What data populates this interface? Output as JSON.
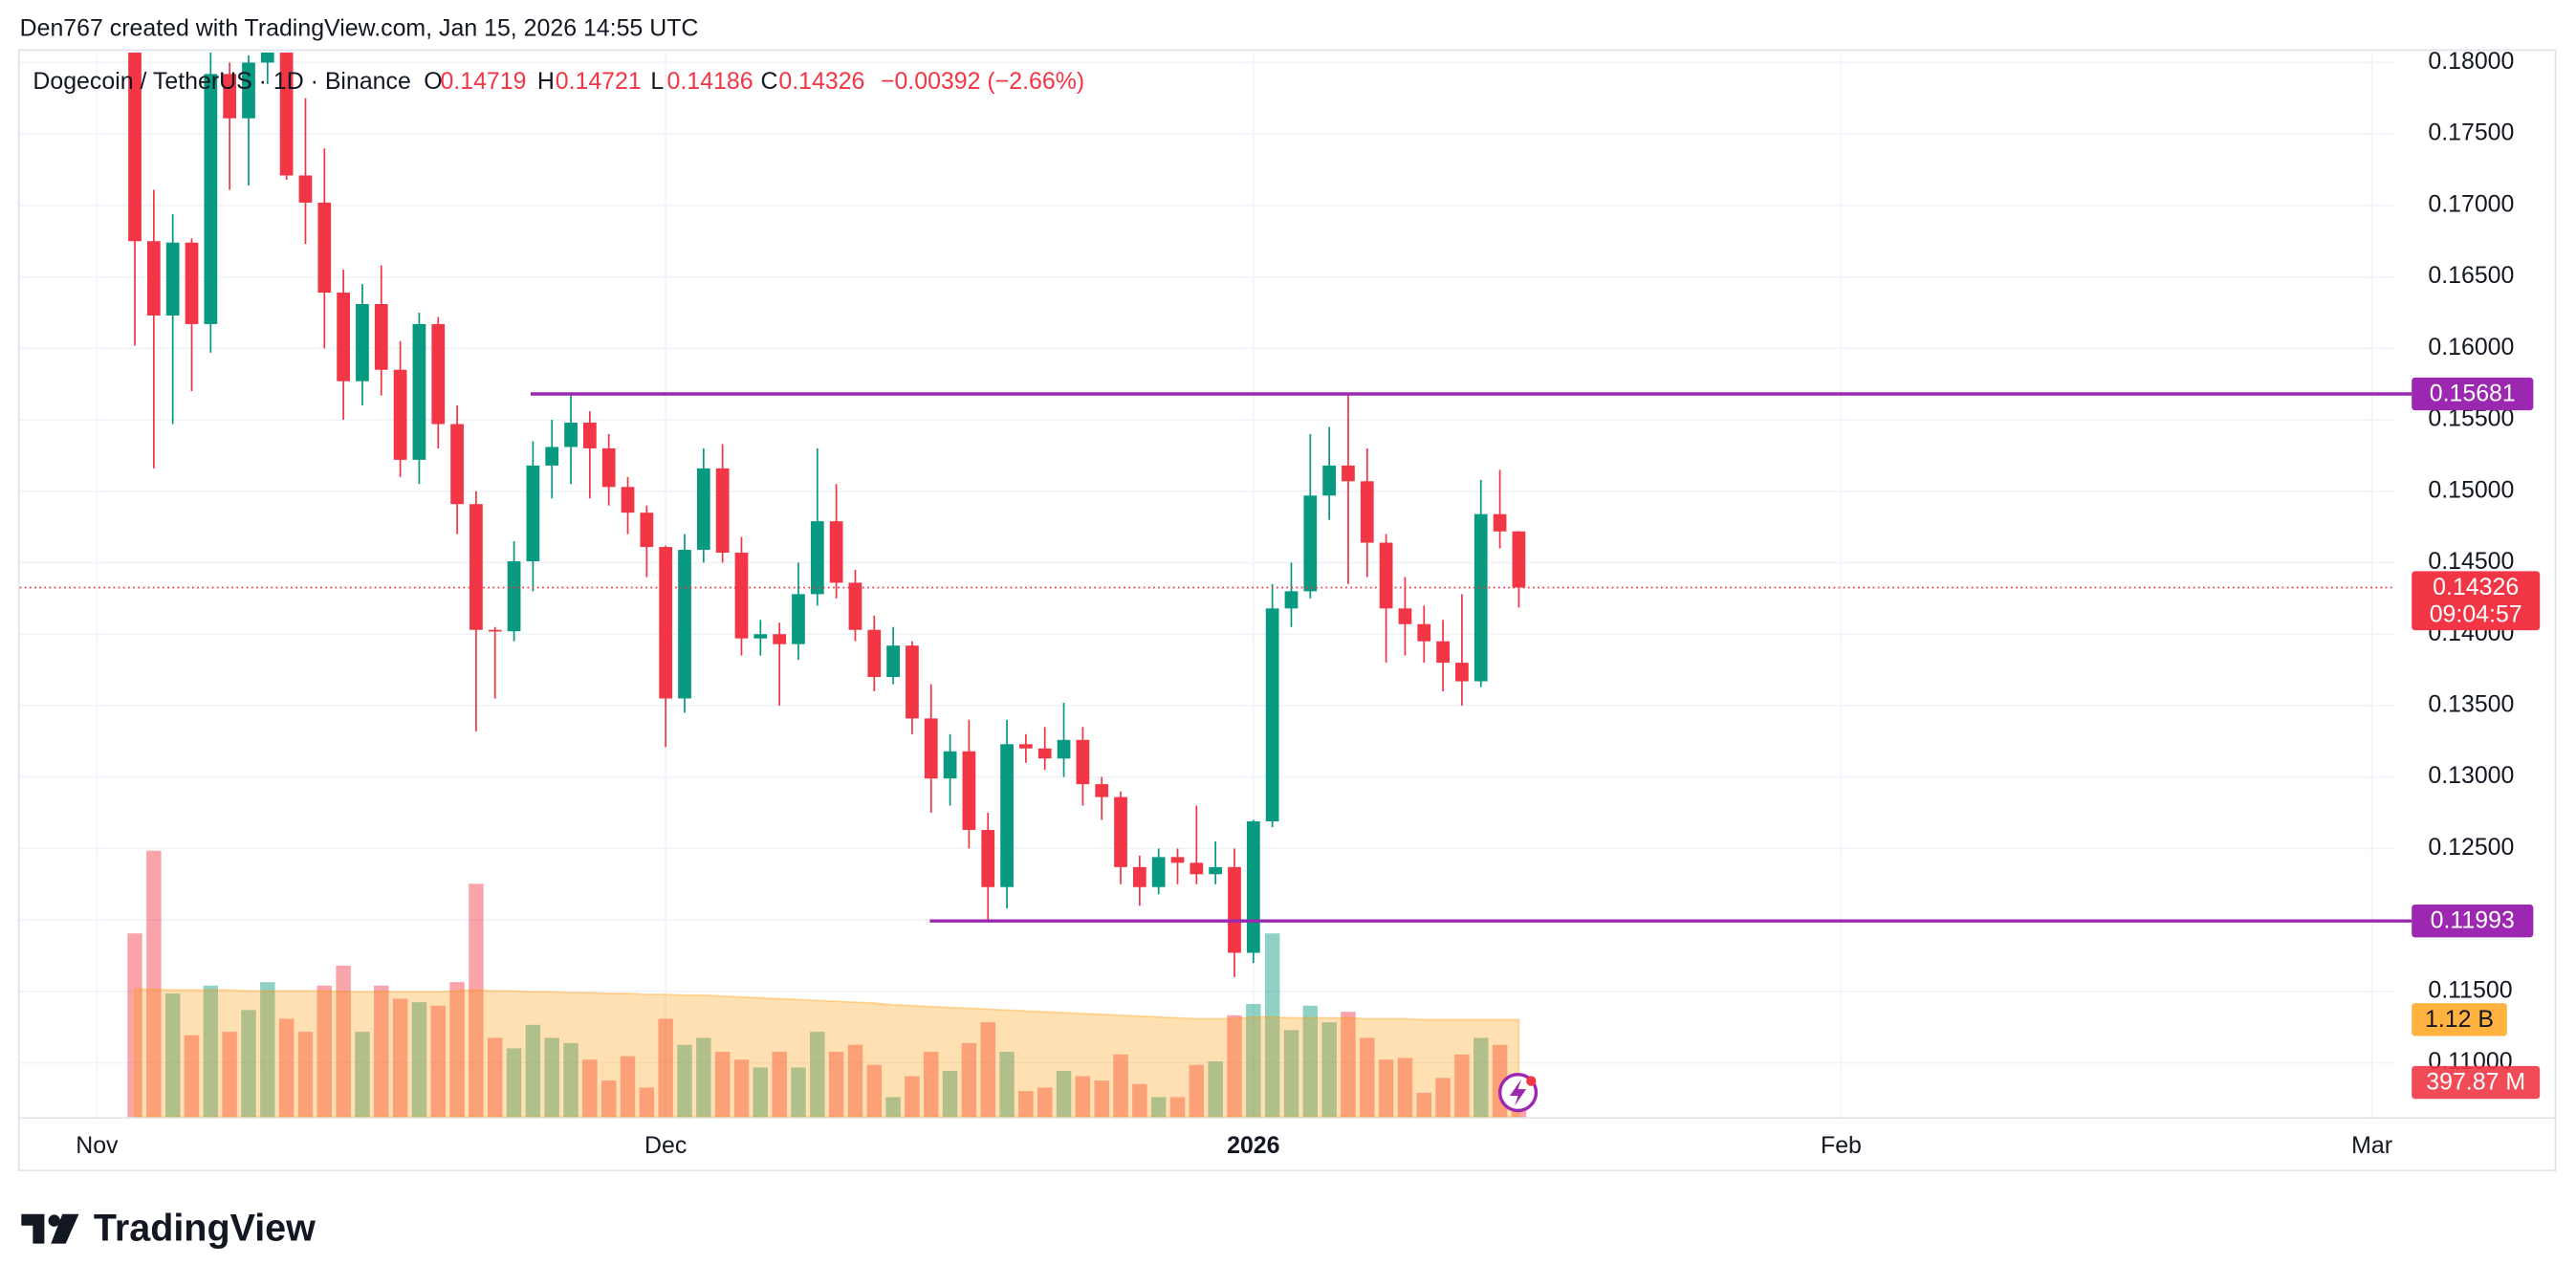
{
  "header": "Den767 created with TradingView.com, Jan 15, 2026 14:55 UTC",
  "brand": "TradingView",
  "chart_data": {
    "type": "candlestick",
    "legend": {
      "symbol": "Dogecoin / TetherUS · 1D · Binance",
      "open_label": "O",
      "open": 0.14719,
      "high_label": "H",
      "high": 0.14721,
      "low_label": "L",
      "low": 0.14186,
      "close_label": "C",
      "close": 0.14326,
      "change": "−0.00392 (−2.66%)"
    },
    "timer": "09:04:57",
    "up_color": "#089981",
    "down_color": "#f23645",
    "level_color": "#9c27b0",
    "volume_ma_color": "#ff9800",
    "grid": true,
    "ylim": [
      0.1062,
      0.1807
    ],
    "yticks": [
      {
        "value": 0.11,
        "label": "0.11000"
      },
      {
        "value": 0.115,
        "label": "0.11500"
      },
      {
        "value": 0.12,
        "label": "0.12000"
      },
      {
        "value": 0.125,
        "label": "0.12500"
      },
      {
        "value": 0.13,
        "label": "0.13000"
      },
      {
        "value": 0.135,
        "label": "0.13500"
      },
      {
        "value": 0.14,
        "label": "0.14000"
      },
      {
        "value": 0.145,
        "label": "0.14500"
      },
      {
        "value": 0.15,
        "label": "0.15000"
      },
      {
        "value": 0.155,
        "label": "0.15500"
      },
      {
        "value": 0.16,
        "label": "0.16000"
      },
      {
        "value": 0.165,
        "label": "0.16500"
      },
      {
        "value": 0.17,
        "label": "0.17000"
      },
      {
        "value": 0.175,
        "label": "0.17500"
      },
      {
        "value": 0.18,
        "label": "0.18000"
      }
    ],
    "levels": [
      0.15681,
      0.11993
    ],
    "volume_ma_label": {
      "value": 1.12,
      "label": "1.12 B"
    },
    "last_volume_label": {
      "value": 0.39787,
      "label": "397.87 M"
    },
    "categories": [
      "Nov",
      null,
      null,
      null,
      null,
      null,
      null,
      null,
      null,
      null,
      null,
      null,
      null,
      null,
      null,
      null,
      null,
      null,
      null,
      null,
      null,
      null,
      null,
      null,
      null,
      null,
      null,
      null,
      null,
      null,
      "Dec",
      null,
      null,
      null,
      null,
      null,
      null,
      null,
      null,
      null,
      null,
      null,
      null,
      null,
      null,
      null,
      null,
      null,
      null,
      null,
      null,
      null,
      null,
      null,
      null,
      null,
      null,
      null,
      null,
      null,
      null,
      "2026",
      null,
      null,
      null,
      null,
      null,
      null,
      null,
      null,
      null,
      null,
      null,
      null,
      null,
      null,
      null,
      null,
      null,
      null,
      null,
      null,
      null,
      null,
      null,
      null,
      null,
      null,
      null,
      null,
      null,
      null,
      "Feb",
      null,
      null,
      null,
      null,
      null,
      null,
      null,
      null,
      null,
      null,
      null,
      null,
      null,
      null,
      null,
      null,
      null,
      null,
      null,
      null,
      null,
      null,
      null,
      null,
      null,
      null,
      null,
      "Mar"
    ],
    "open": [
      null,
      null,
      0.1825,
      0.1675,
      0.1623,
      0.1674,
      0.1617,
      0.1792,
      0.1761,
      0.18,
      0.1815,
      0.1721,
      0.1702,
      0.1639,
      0.1577,
      0.1631,
      0.1585,
      0.1522,
      0.1617,
      0.1547,
      0.1491,
      0.1403,
      0.1402,
      0.1451,
      0.1518,
      0.1531,
      0.1548,
      0.153,
      0.1503,
      0.1485,
      0.1461,
      0.1355,
      0.1459,
      0.1516,
      0.1457,
      0.1397,
      0.14,
      0.1393,
      0.1428,
      0.1479,
      0.1436,
      0.1403,
      0.137,
      0.1392,
      0.1341,
      0.1299,
      0.1318,
      0.1263,
      0.1223,
      0.1323,
      0.132,
      0.1313,
      0.1326,
      0.1295,
      0.1286,
      0.1237,
      0.1223,
      0.1244,
      0.124,
      0.1232,
      0.1237,
      0.1177,
      0.1269,
      0.1418,
      0.143,
      0.1497,
      0.1518,
      0.1507,
      0.1464,
      0.1418,
      0.1407,
      0.1395,
      0.138,
      0.1367,
      0.1484,
      0.14719,
      null,
      null,
      null,
      null,
      null,
      null,
      null,
      null,
      null,
      null,
      null,
      null,
      null,
      null,
      null,
      null,
      null,
      null,
      null,
      null,
      null,
      null,
      null,
      null,
      null,
      null,
      null,
      null,
      null,
      null,
      null,
      null,
      null,
      null,
      null,
      null,
      null,
      null,
      null,
      null,
      null,
      null,
      null,
      null,
      null
    ],
    "high": [
      null,
      null,
      0.185,
      0.1711,
      0.1694,
      0.1677,
      0.181,
      0.18,
      0.1805,
      0.183,
      0.1825,
      0.1775,
      0.174,
      0.1655,
      0.1645,
      0.1658,
      0.1605,
      0.1625,
      0.1622,
      0.156,
      0.15,
      0.1405,
      0.1465,
      0.1535,
      0.155,
      0.1568,
      0.1556,
      0.154,
      0.151,
      0.149,
      0.1462,
      0.147,
      0.153,
      0.1533,
      0.1468,
      0.141,
      0.1408,
      0.145,
      0.153,
      0.1505,
      0.1445,
      0.1413,
      0.1405,
      0.1395,
      0.1365,
      0.133,
      0.134,
      0.1275,
      0.134,
      0.133,
      0.1335,
      0.1352,
      0.1335,
      0.13,
      0.129,
      0.1245,
      0.125,
      0.125,
      0.128,
      0.1255,
      0.125,
      0.127,
      0.1435,
      0.145,
      0.154,
      0.1545,
      0.1568,
      0.153,
      0.147,
      0.144,
      0.142,
      0.141,
      0.1428,
      0.1508,
      0.1515,
      0.14721,
      null,
      null,
      null,
      null,
      null,
      null,
      null,
      null,
      null,
      null,
      null,
      null,
      null,
      null,
      null,
      null,
      null,
      null,
      null,
      null,
      null,
      null,
      null,
      null,
      null,
      null,
      null,
      null,
      null,
      null,
      null,
      null,
      null,
      null,
      null,
      null,
      null,
      null,
      null,
      null,
      null,
      null,
      null,
      null,
      null
    ],
    "low": [
      null,
      null,
      0.1602,
      0.1516,
      0.1547,
      0.157,
      0.1597,
      0.1711,
      0.1714,
      0.1785,
      0.1718,
      0.1673,
      0.16,
      0.155,
      0.156,
      0.1567,
      0.151,
      0.1505,
      0.153,
      0.147,
      0.1332,
      0.1355,
      0.1395,
      0.143,
      0.1495,
      0.1505,
      0.1495,
      0.149,
      0.147,
      0.144,
      0.1321,
      0.1345,
      0.145,
      0.145,
      0.1385,
      0.1385,
      0.135,
      0.1382,
      0.142,
      0.1425,
      0.1395,
      0.136,
      0.1365,
      0.133,
      0.1275,
      0.128,
      0.125,
      0.12,
      0.1208,
      0.131,
      0.1305,
      0.13,
      0.128,
      0.127,
      0.1225,
      0.121,
      0.1218,
      0.1225,
      0.1225,
      0.1225,
      0.116,
      0.117,
      0.1265,
      0.1405,
      0.1425,
      0.148,
      0.1435,
      0.144,
      0.138,
      0.1385,
      0.138,
      0.136,
      0.135,
      0.1363,
      0.146,
      0.14186,
      null,
      null,
      null,
      null,
      null,
      null,
      null,
      null,
      null,
      null,
      null,
      null,
      null,
      null,
      null,
      null,
      null,
      null,
      null,
      null,
      null,
      null,
      null,
      null,
      null,
      null,
      null,
      null,
      null,
      null,
      null,
      null,
      null,
      null,
      null,
      null,
      null,
      null,
      null,
      null,
      null,
      null,
      null,
      null,
      null
    ],
    "close": [
      null,
      null,
      0.1675,
      0.1623,
      0.1674,
      0.1617,
      0.1792,
      0.1761,
      0.18,
      0.1815,
      0.1721,
      0.1702,
      0.1639,
      0.1577,
      0.1631,
      0.1585,
      0.1522,
      0.1617,
      0.1547,
      0.1491,
      0.1403,
      0.1402,
      0.1451,
      0.1518,
      0.1531,
      0.1548,
      0.153,
      0.1503,
      0.1485,
      0.1461,
      0.1355,
      0.1459,
      0.1516,
      0.1457,
      0.1397,
      0.14,
      0.1393,
      0.1428,
      0.1479,
      0.1436,
      0.1403,
      0.137,
      0.1392,
      0.1341,
      0.1299,
      0.1318,
      0.1263,
      0.1223,
      0.1323,
      0.132,
      0.1313,
      0.1326,
      0.1295,
      0.1286,
      0.1237,
      0.1223,
      0.1244,
      0.124,
      0.1232,
      0.1237,
      0.1177,
      0.1269,
      0.1418,
      0.143,
      0.1497,
      0.1518,
      0.1507,
      0.1464,
      0.1418,
      0.1407,
      0.1395,
      0.138,
      0.1367,
      0.1484,
      0.14719,
      0.14326,
      null,
      null,
      null,
      null,
      null,
      null,
      null,
      null,
      null,
      null,
      null,
      null,
      null,
      null,
      null,
      null,
      null,
      null,
      null,
      null,
      null,
      null,
      null,
      null,
      null,
      null,
      null,
      null,
      null,
      null,
      null,
      null,
      null,
      null,
      null,
      null,
      null,
      null,
      null,
      null,
      null,
      null,
      null,
      null,
      null
    ],
    "volume": [
      null,
      null,
      2.11,
      3.06,
      1.42,
      0.94,
      1.51,
      0.98,
      1.23,
      1.55,
      1.13,
      0.98,
      1.51,
      1.74,
      0.98,
      1.51,
      1.36,
      1.32,
      1.28,
      1.55,
      2.68,
      0.91,
      0.79,
      1.06,
      0.91,
      0.85,
      0.66,
      0.42,
      0.7,
      0.34,
      1.13,
      0.83,
      0.91,
      0.75,
      0.66,
      0.57,
      0.75,
      0.57,
      0.98,
      0.75,
      0.83,
      0.6,
      0.23,
      0.47,
      0.75,
      0.53,
      0.85,
      1.09,
      0.75,
      0.3,
      0.34,
      0.53,
      0.47,
      0.42,
      0.72,
      0.38,
      0.23,
      0.23,
      0.6,
      0.64,
      1.17,
      1.3,
      2.11,
      1.0,
      1.28,
      1.09,
      1.21,
      0.91,
      0.66,
      0.68,
      0.28,
      0.45,
      0.72,
      0.91,
      0.83,
      0.39787,
      null,
      null,
      null,
      null,
      null,
      null,
      null,
      null,
      null,
      null,
      null,
      null,
      null,
      null,
      null,
      null,
      null,
      null,
      null,
      null,
      null,
      null,
      null,
      null,
      null,
      null,
      null,
      null,
      null,
      null,
      null,
      null,
      null,
      null,
      null,
      null,
      null,
      null,
      null,
      null,
      null,
      null,
      null,
      null,
      null
    ],
    "volume_ma": [
      null,
      null,
      1.47,
      1.47,
      1.46,
      1.46,
      1.46,
      1.46,
      1.45,
      1.45,
      1.45,
      1.45,
      1.45,
      1.44,
      1.44,
      1.44,
      1.44,
      1.44,
      1.44,
      1.45,
      1.46,
      1.45,
      1.45,
      1.44,
      1.44,
      1.43,
      1.43,
      1.42,
      1.42,
      1.41,
      1.41,
      1.4,
      1.4,
      1.39,
      1.38,
      1.37,
      1.36,
      1.35,
      1.34,
      1.33,
      1.32,
      1.31,
      1.29,
      1.28,
      1.27,
      1.26,
      1.25,
      1.24,
      1.23,
      1.22,
      1.21,
      1.2,
      1.19,
      1.18,
      1.17,
      1.16,
      1.15,
      1.14,
      1.13,
      1.13,
      1.13,
      1.15,
      1.15,
      1.14,
      1.14,
      1.14,
      1.14,
      1.13,
      1.13,
      1.13,
      1.12,
      1.12,
      1.12,
      1.12,
      1.12,
      1.12,
      null,
      null,
      null,
      null,
      null,
      null,
      null,
      null,
      null,
      null,
      null,
      null,
      null,
      null,
      null,
      null,
      null,
      null,
      null,
      null,
      null,
      null,
      null,
      null,
      null,
      null,
      null,
      null,
      null,
      null,
      null,
      null,
      null,
      null,
      null,
      null,
      null,
      null,
      null,
      null,
      null,
      null,
      null,
      null,
      null
    ]
  }
}
